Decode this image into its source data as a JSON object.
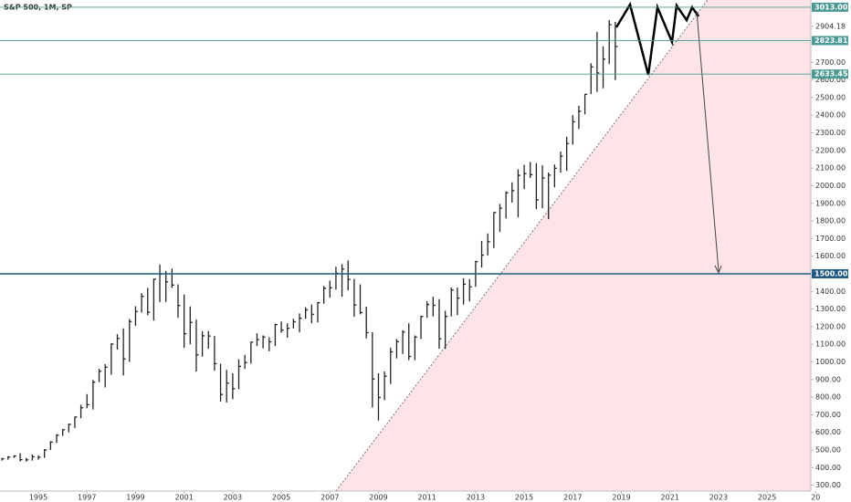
{
  "chart_data": {
    "type": "ohlc",
    "title": "S&P 500, 1M, SP",
    "xlim": [
      1993.42,
      2026.8
    ],
    "xticks": [
      1995,
      1997,
      1999,
      2001,
      2003,
      2005,
      2007,
      2009,
      2011,
      2013,
      2015,
      2017,
      2019,
      2021,
      2023,
      2025,
      {
        "value": 2027,
        "label": "20"
      }
    ],
    "ylim": [
      267,
      3054
    ],
    "yticks": [
      {
        "value": 300,
        "label": "300.00"
      },
      {
        "value": 400,
        "label": "400.00"
      },
      {
        "value": 500,
        "label": "500.00"
      },
      {
        "value": 600,
        "label": "600.00"
      },
      {
        "value": 700,
        "label": "700.00"
      },
      {
        "value": 800,
        "label": "800.00"
      },
      {
        "value": 900,
        "label": "900.00"
      },
      {
        "value": 1000,
        "label": "1000.00"
      },
      {
        "value": 1100,
        "label": "1100.00"
      },
      {
        "value": 1200,
        "label": "1200.00"
      },
      {
        "value": 1300,
        "label": "1300.00"
      },
      {
        "value": 1400,
        "label": "1400.00"
      },
      {
        "value": 1600,
        "label": "1600.00"
      },
      {
        "value": 1700,
        "label": "1700.00"
      },
      {
        "value": 1800,
        "label": "1800.00"
      },
      {
        "value": 1900,
        "label": "1900.00"
      },
      {
        "value": 2000,
        "label": "2000.00"
      },
      {
        "value": 2100,
        "label": "2100.00"
      },
      {
        "value": 2200,
        "label": "2200.00"
      },
      {
        "value": 2300,
        "label": "2300.00"
      },
      {
        "value": 2400,
        "label": "2400.00"
      },
      {
        "value": 2500,
        "label": "2500.00"
      },
      {
        "value": 2600,
        "label": "2600.00"
      },
      {
        "value": 2700,
        "label": "2700.00"
      },
      {
        "value": 2904.18,
        "label": "2904.18"
      }
    ],
    "levels": [
      {
        "value": 3013,
        "label": "3013.00",
        "color": "#4a9a94"
      },
      {
        "value": 2823.81,
        "label": "2823.81",
        "color": "#4a9a94"
      },
      {
        "value": 2633.45,
        "label": "2633.45",
        "color": "#4a9a94"
      },
      {
        "value": 1500,
        "label": "1500.00",
        "color": "#1f5a85"
      }
    ],
    "color": "#222222",
    "x": [
      1993.5,
      1993.75,
      1994,
      1994.25,
      1994.5,
      1994.75,
      1995,
      1995.25,
      1995.5,
      1995.75,
      1996,
      1996.25,
      1996.5,
      1996.75,
      1997,
      1997.25,
      1997.5,
      1997.75,
      1998,
      1998.25,
      1998.5,
      1998.75,
      1999,
      1999.25,
      1999.5,
      1999.75,
      2000,
      2000.25,
      2000.5,
      2000.75,
      2001,
      2001.25,
      2001.5,
      2001.75,
      2002,
      2002.25,
      2002.5,
      2002.75,
      2003,
      2003.25,
      2003.5,
      2003.75,
      2004,
      2004.25,
      2004.5,
      2004.75,
      2005,
      2005.25,
      2005.5,
      2005.75,
      2006,
      2006.25,
      2006.5,
      2006.75,
      2007,
      2007.25,
      2007.5,
      2007.75,
      2008,
      2008.25,
      2008.5,
      2008.75,
      2009,
      2009.25,
      2009.5,
      2009.75,
      2010,
      2010.25,
      2010.5,
      2010.75,
      2011,
      2011.25,
      2011.5,
      2011.75,
      2012,
      2012.25,
      2012.5,
      2012.75,
      2013,
      2013.25,
      2013.5,
      2013.75,
      2014,
      2014.25,
      2014.5,
      2014.75,
      2015,
      2015.25,
      2015.5,
      2015.75,
      2016,
      2016.25,
      2016.5,
      2016.75,
      2017,
      2017.25,
      2017.5,
      2017.75,
      2018,
      2018.25,
      2018.5,
      2018.75
    ],
    "high": [
      455,
      465,
      470,
      482,
      455,
      475,
      470,
      505,
      550,
      590,
      618,
      650,
      690,
      757,
      817,
      898,
      961,
      987,
      1106,
      1157,
      1190,
      1244,
      1316,
      1390,
      1420,
      1473,
      1553,
      1516,
      1530,
      1440,
      1383,
      1315,
      1240,
      1175,
      1176,
      1147,
      990,
      955,
      935,
      1015,
      1040,
      1115,
      1163,
      1150,
      1140,
      1217,
      1229,
      1219,
      1245,
      1275,
      1310,
      1326,
      1340,
      1431,
      1461,
      1540,
      1555,
      1576,
      1471,
      1440,
      1313,
      1169,
      935,
      946,
      1080,
      1130,
      1180,
      1219,
      1150,
      1262,
      1344,
      1370,
      1356,
      1290,
      1422,
      1422,
      1475,
      1470,
      1574,
      1687,
      1729,
      1850,
      1897,
      1968,
      2019,
      2093,
      2119,
      2135,
      2128,
      2116,
      2075,
      2120,
      2194,
      2278,
      2401,
      2454,
      2520,
      2695,
      2873,
      2791,
      2940,
      2930
    ],
    "low": [
      440,
      445,
      455,
      435,
      435,
      440,
      445,
      455,
      500,
      540,
      580,
      600,
      625,
      680,
      737,
      730,
      885,
      855,
      927,
      1070,
      923,
      1000,
      1205,
      1280,
      1265,
      1235,
      1340,
      1340,
      1420,
      1250,
      1080,
      1100,
      945,
      1030,
      1075,
      950,
      775,
      770,
      788,
      845,
      960,
      990,
      1090,
      1076,
      1060,
      1090,
      1165,
      1137,
      1190,
      1168,
      1245,
      1219,
      1224,
      1330,
      1364,
      1410,
      1370,
      1406,
      1256,
      1270,
      1133,
      741,
      667,
      783,
      875,
      1020,
      1045,
      1010,
      1010,
      1130,
      1250,
      1258,
      1075,
      1074,
      1258,
      1266,
      1325,
      1343,
      1426,
      1536,
      1604,
      1646,
      1737,
      1814,
      1904,
      1820,
      1981,
      2044,
      1867,
      1872,
      1810,
      1991,
      2074,
      2084,
      2233,
      2322,
      2405,
      2520,
      2532,
      2553,
      2690,
      2600
    ],
    "close": [
      450,
      460,
      466,
      445,
      444,
      462,
      459,
      500,
      545,
      584,
      615,
      645,
      687,
      740,
      757,
      885,
      947,
      970,
      1101,
      1133,
      1017,
      1229,
      1286,
      1372,
      1282,
      1469,
      1498,
      1454,
      1436,
      1320,
      1160,
      1224,
      1040,
      1148,
      1147,
      990,
      815,
      880,
      848,
      975,
      996,
      1112,
      1126,
      1141,
      1114,
      1212,
      1181,
      1191,
      1228,
      1248,
      1295,
      1270,
      1336,
      1418,
      1420,
      1503,
      1527,
      1468,
      1323,
      1280,
      1166,
      903,
      798,
      919,
      1057,
      1115,
      1169,
      1031,
      1141,
      1258,
      1326,
      1321,
      1131,
      1258,
      1408,
      1362,
      1441,
      1426,
      1569,
      1606,
      1682,
      1848,
      1872,
      1960,
      1972,
      2059,
      2068,
      2063,
      1920,
      2044,
      2060,
      2099,
      2168,
      2239,
      2363,
      2423,
      2519,
      2674,
      2640,
      2718,
      2914,
      2790
    ]
  }
}
